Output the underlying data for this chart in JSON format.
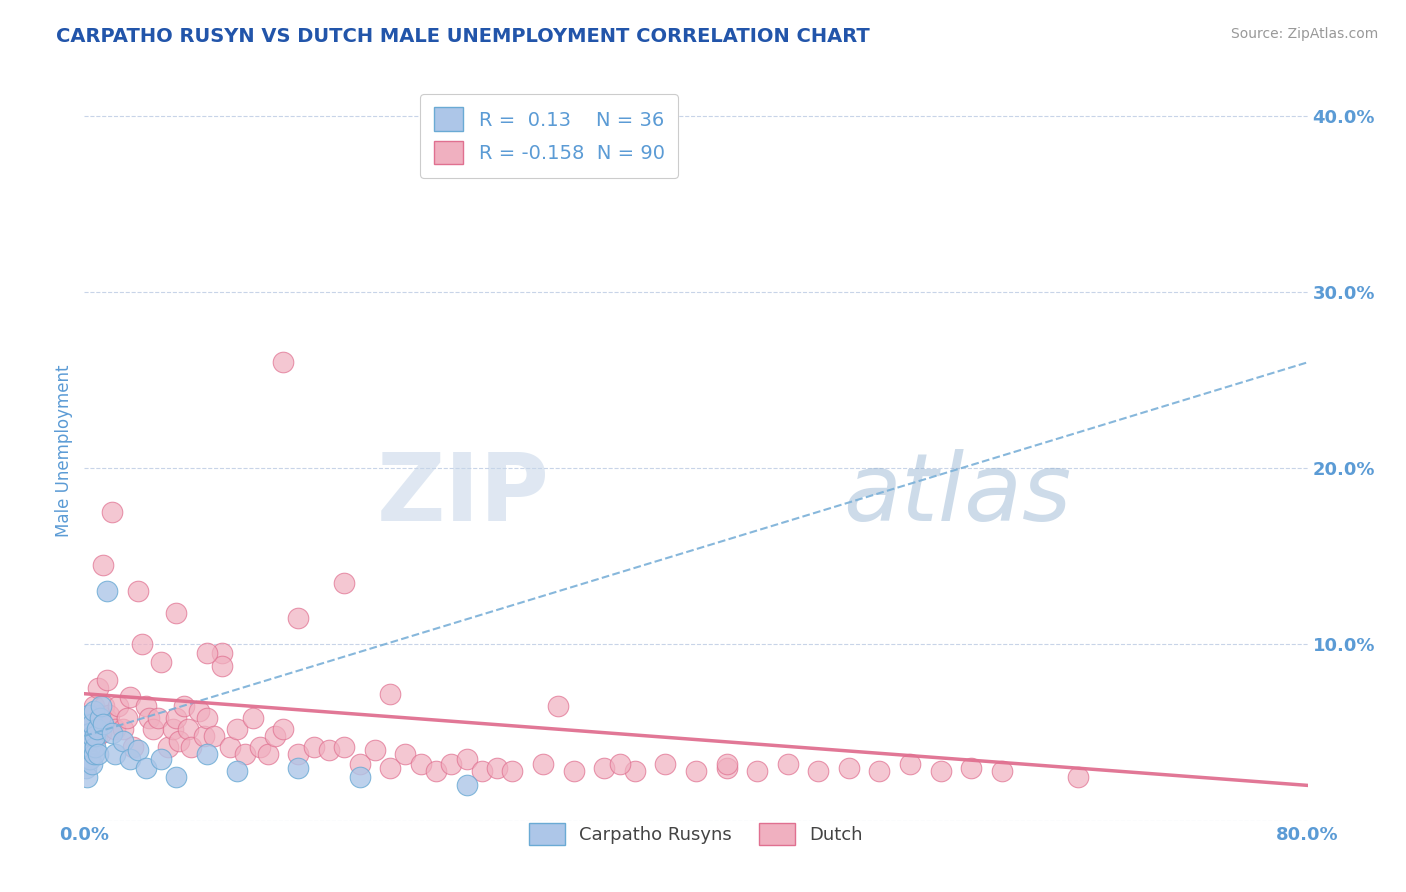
{
  "title": "CARPATHO RUSYN VS DUTCH MALE UNEMPLOYMENT CORRELATION CHART",
  "source_text": "Source: ZipAtlas.com",
  "ylabel": "Male Unemployment",
  "watermark_zip": "ZIP",
  "watermark_atlas": "atlas",
  "xmin": 0.0,
  "xmax": 0.8,
  "ymin": 0.0,
  "ymax": 0.42,
  "yticks": [
    0.0,
    0.1,
    0.2,
    0.3,
    0.4
  ],
  "ytick_labels": [
    "",
    "10.0%",
    "20.0%",
    "30.0%",
    "40.0%"
  ],
  "blue_R": 0.13,
  "blue_N": 36,
  "pink_R": -0.158,
  "pink_N": 90,
  "blue_color": "#adc6e8",
  "blue_edge_color": "#6aaad4",
  "blue_line_color": "#7ab0d8",
  "pink_color": "#f0b0c0",
  "pink_edge_color": "#e07090",
  "pink_line_color": "#e07090",
  "background_color": "#ffffff",
  "grid_color": "#c8d4e8",
  "title_color": "#2255aa",
  "axis_label_color": "#5b9bd5",
  "blue_trend_start_y": 0.048,
  "blue_trend_end_y": 0.26,
  "pink_trend_start_y": 0.072,
  "pink_trend_end_y": 0.02,
  "blue_points_x": [
    0.001,
    0.001,
    0.002,
    0.002,
    0.003,
    0.003,
    0.003,
    0.004,
    0.004,
    0.004,
    0.005,
    0.005,
    0.005,
    0.006,
    0.006,
    0.007,
    0.007,
    0.008,
    0.009,
    0.01,
    0.011,
    0.012,
    0.015,
    0.018,
    0.02,
    0.025,
    0.03,
    0.035,
    0.04,
    0.05,
    0.06,
    0.08,
    0.1,
    0.14,
    0.18,
    0.25
  ],
  "blue_points_y": [
    0.04,
    0.03,
    0.055,
    0.025,
    0.06,
    0.035,
    0.045,
    0.035,
    0.05,
    0.042,
    0.032,
    0.048,
    0.055,
    0.038,
    0.062,
    0.042,
    0.048,
    0.052,
    0.038,
    0.058,
    0.065,
    0.055,
    0.13,
    0.05,
    0.038,
    0.045,
    0.035,
    0.04,
    0.03,
    0.035,
    0.025,
    0.038,
    0.028,
    0.03,
    0.025,
    0.02
  ],
  "pink_points_x": [
    0.003,
    0.004,
    0.005,
    0.006,
    0.007,
    0.008,
    0.009,
    0.01,
    0.011,
    0.012,
    0.013,
    0.014,
    0.015,
    0.016,
    0.018,
    0.02,
    0.022,
    0.025,
    0.028,
    0.03,
    0.032,
    0.035,
    0.038,
    0.04,
    0.042,
    0.045,
    0.048,
    0.05,
    0.055,
    0.058,
    0.06,
    0.062,
    0.065,
    0.068,
    0.07,
    0.075,
    0.078,
    0.08,
    0.085,
    0.09,
    0.095,
    0.1,
    0.105,
    0.11,
    0.115,
    0.12,
    0.125,
    0.13,
    0.14,
    0.15,
    0.16,
    0.17,
    0.18,
    0.19,
    0.2,
    0.21,
    0.22,
    0.23,
    0.24,
    0.25,
    0.26,
    0.27,
    0.28,
    0.3,
    0.32,
    0.34,
    0.36,
    0.38,
    0.4,
    0.42,
    0.44,
    0.46,
    0.48,
    0.5,
    0.52,
    0.54,
    0.56,
    0.58,
    0.6,
    0.65,
    0.35,
    0.13,
    0.09,
    0.17,
    0.14,
    0.06,
    0.08,
    0.2,
    0.31,
    0.42
  ],
  "pink_points_y": [
    0.06,
    0.055,
    0.048,
    0.065,
    0.055,
    0.048,
    0.075,
    0.06,
    0.05,
    0.145,
    0.065,
    0.058,
    0.08,
    0.06,
    0.175,
    0.052,
    0.065,
    0.052,
    0.058,
    0.07,
    0.042,
    0.13,
    0.1,
    0.065,
    0.058,
    0.052,
    0.058,
    0.09,
    0.042,
    0.052,
    0.058,
    0.045,
    0.065,
    0.052,
    0.042,
    0.062,
    0.048,
    0.058,
    0.048,
    0.095,
    0.042,
    0.052,
    0.038,
    0.058,
    0.042,
    0.038,
    0.048,
    0.052,
    0.038,
    0.042,
    0.04,
    0.042,
    0.032,
    0.04,
    0.03,
    0.038,
    0.032,
    0.028,
    0.032,
    0.035,
    0.028,
    0.03,
    0.028,
    0.032,
    0.028,
    0.03,
    0.028,
    0.032,
    0.028,
    0.03,
    0.028,
    0.032,
    0.028,
    0.03,
    0.028,
    0.032,
    0.028,
    0.03,
    0.028,
    0.025,
    0.032,
    0.26,
    0.088,
    0.135,
    0.115,
    0.118,
    0.095,
    0.072,
    0.065,
    0.032
  ]
}
